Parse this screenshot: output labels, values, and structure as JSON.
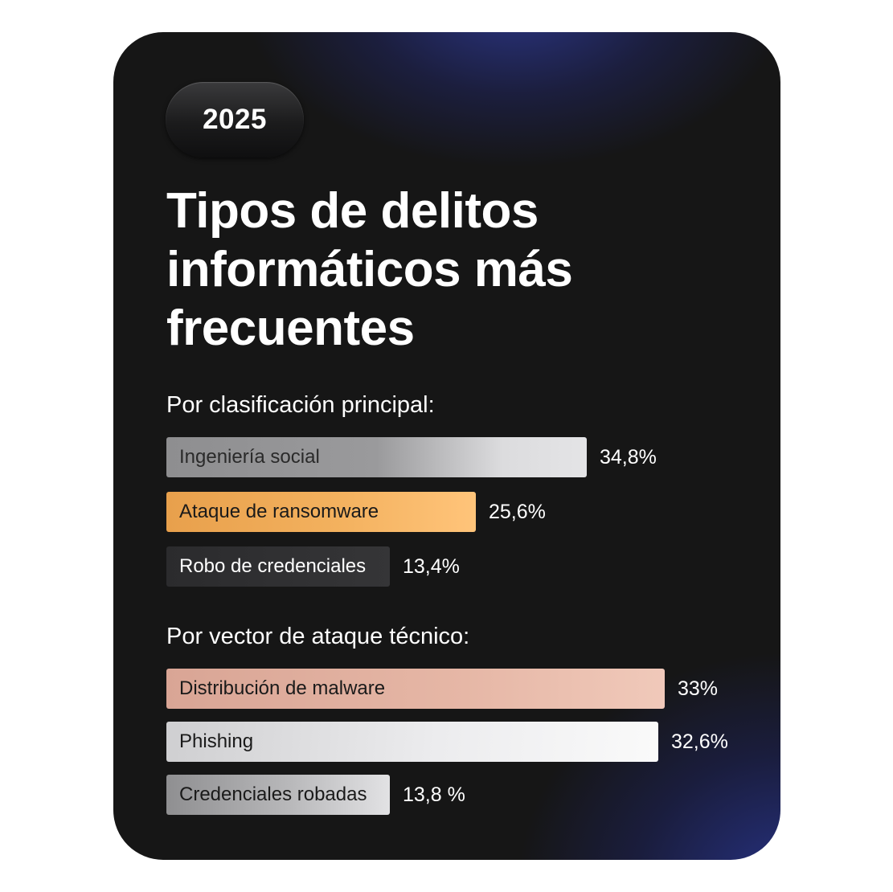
{
  "badge": {
    "year": "2025"
  },
  "title": "Tipos de delitos informáticos más frecuentes",
  "colors": {
    "ingenieria": "linear-gradient(90deg, #8e8e90 0%, #9a9a9c 50%, #dcdcde 80%, #e4e4e6 100%)",
    "ransomware": "linear-gradient(90deg, #e8a04c 0%, #f3b15e 55%, #ffc47a 100%)",
    "robo": "linear-gradient(90deg, #2b2b2d 0%, #353537 100%)",
    "malware": "linear-gradient(90deg, #d9a595 0%, #e6b7a6 60%, #f0c9ba 100%)",
    "phishing": "linear-gradient(95deg, #cfcfd1 0%, #ececee 55%, #fafafa 100%)",
    "credenciales": "linear-gradient(90deg, #8f8f91 0%, #b8b8ba 55%, #e2e2e4 100%)"
  },
  "chart_data": [
    {
      "type": "bar",
      "orientation": "horizontal",
      "title": "Por clasificación principal:",
      "categories": [
        "Ingeniería social",
        "Ataque de ransomware",
        "Robo de credenciales"
      ],
      "values": [
        34.8,
        25.6,
        13.4
      ],
      "value_labels": [
        "34,8%",
        "25,6%",
        "13,4%"
      ],
      "colors": [
        "ingenieria",
        "ransomware",
        "robo"
      ],
      "text_colors": [
        "#2a2a2a",
        "#1a1a1a",
        "#ffffff"
      ],
      "max": 34.8
    },
    {
      "type": "bar",
      "orientation": "horizontal",
      "title": "Por vector de ataque técnico:",
      "categories": [
        "Distribución de malware",
        "Phishing",
        "Credenciales robadas"
      ],
      "values": [
        33,
        32.6,
        13.8
      ],
      "value_labels": [
        "33%",
        "32,6%",
        "13,8 %"
      ],
      "colors": [
        "malware",
        "phishing",
        "credenciales"
      ],
      "text_colors": [
        "#1a1a1a",
        "#1a1a1a",
        "#1a1a1a"
      ],
      "max": 33
    }
  ]
}
